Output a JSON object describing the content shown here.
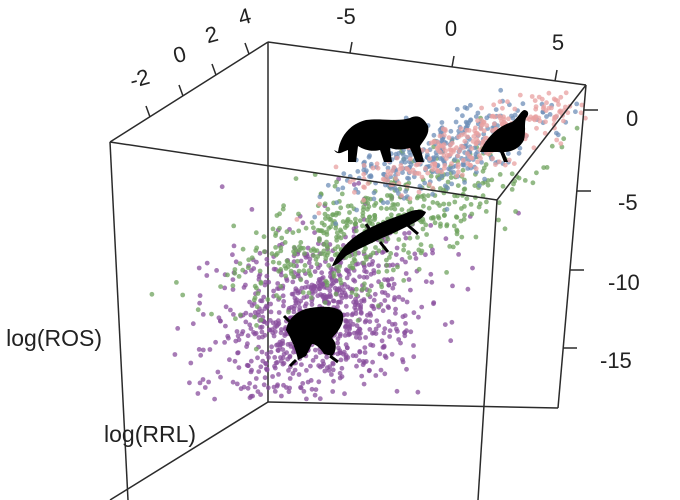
{
  "chart_data": {
    "type": "scatter",
    "title": "",
    "axes": {
      "z_label": "log(ROS)",
      "y_label": "log(RRL)",
      "x_label": "",
      "x_ticks": [
        "-5",
        "0",
        "5"
      ],
      "y_ticks": [
        "-2",
        "0",
        "2",
        "4"
      ],
      "z_ticks": [
        "0",
        "-5",
        "-10",
        "-15"
      ],
      "z_range": [
        -17,
        2
      ]
    },
    "grid": false,
    "legend": "none",
    "series": [
      {
        "group": "mammal",
        "icon": "tiger-silhouette-icon",
        "color": "#e8a0a0",
        "z_center": -1.5
      },
      {
        "group": "bird",
        "icon": "bird-silhouette-icon",
        "color": "#6f8fb8",
        "z_center": -2
      },
      {
        "group": "reptile",
        "icon": "lizard-silhouette-icon",
        "color": "#6fa35e",
        "z_center": -6.5
      },
      {
        "group": "amphibian",
        "icon": "frog-silhouette-icon",
        "color": "#8a4f9e",
        "z_center": -12
      }
    ]
  }
}
